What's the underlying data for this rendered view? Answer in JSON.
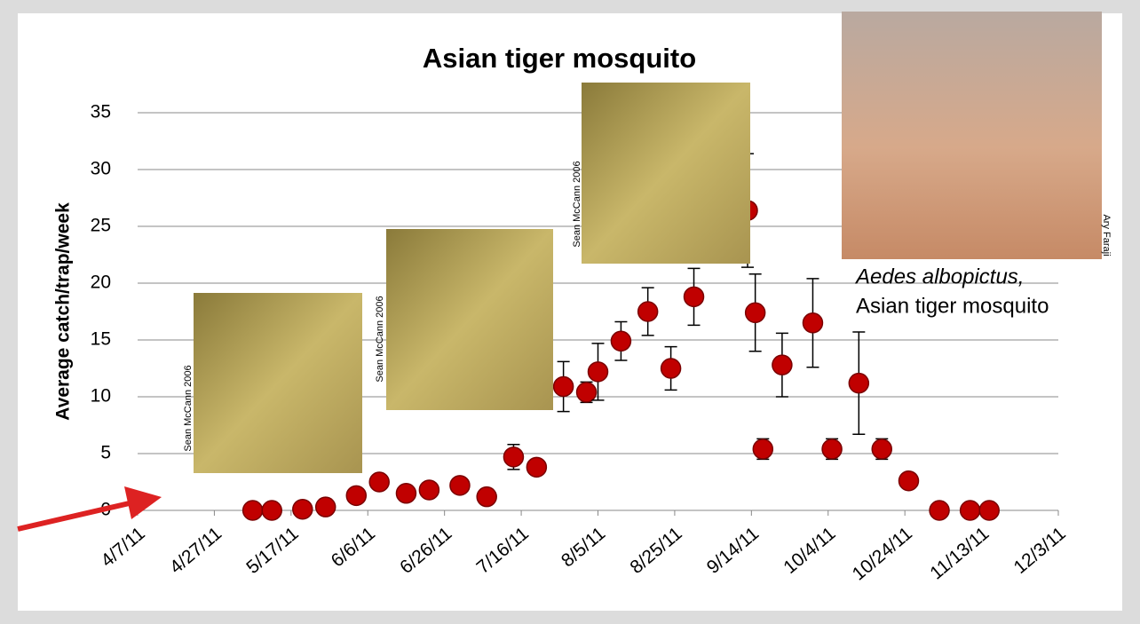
{
  "chart_data": {
    "type": "scatter",
    "title": "Asian tiger mosquito",
    "y_label": "Average catch/trap/week",
    "x": [
      "5/7/11",
      "5/12/11",
      "5/20/11",
      "5/26/11",
      "6/3/11",
      "6/9/11",
      "6/16/11",
      "6/22/11",
      "6/30/11",
      "7/7/11",
      "7/14/11",
      "7/20/11",
      "7/27/11",
      "8/2/11",
      "8/5/11",
      "8/11/11",
      "8/18/11",
      "8/24/11",
      "8/30/11",
      "9/13/11",
      "9/15/11",
      "9/17/11",
      "9/22/11",
      "9/30/11",
      "10/5/11",
      "10/12/11",
      "10/18/11",
      "10/25/11",
      "11/2/11",
      "11/10/11",
      "11/15/11"
    ],
    "values": [
      0,
      0,
      0.1,
      0.3,
      1.3,
      2.5,
      1.5,
      1.8,
      2.2,
      1.2,
      4.7,
      3.8,
      10.9,
      10.4,
      12.2,
      14.9,
      17.5,
      12.5,
      18.8,
      26.4,
      17.4,
      5.4,
      12.8,
      16.5,
      5.4,
      11.2,
      5.4,
      2.6,
      0,
      0,
      0
    ],
    "errors": [
      null,
      null,
      null,
      null,
      null,
      null,
      null,
      null,
      null,
      null,
      1.1,
      null,
      2.2,
      0.9,
      2.5,
      1.7,
      2.1,
      1.9,
      2.5,
      5,
      3.4,
      0.9,
      2.8,
      3.9,
      0.9,
      4.5,
      0.9,
      null,
      null,
      null,
      null
    ],
    "color": "#c00000",
    "xlim": [
      "4/7/11",
      "12/3/11"
    ],
    "xticks": [
      "4/7/11",
      "4/27/11",
      "5/17/11",
      "6/6/11",
      "6/26/11",
      "7/16/11",
      "8/5/11",
      "8/25/11",
      "9/14/11",
      "10/4/11",
      "10/24/11",
      "11/13/11",
      "12/3/11"
    ],
    "ylim": [
      0,
      35
    ],
    "yticks": [
      0,
      5,
      10,
      15,
      20,
      25,
      30,
      35
    ],
    "grid": true
  },
  "photos": [
    {
      "credit": "Sean McCann 2006"
    },
    {
      "credit": "Sean McCann 2006"
    },
    {
      "credit": "Sean McCann 2006"
    },
    {
      "credit": "Ary Faraji"
    }
  ],
  "caption": {
    "species": "Aedes albopictus,",
    "common_name": "Asian tiger mosquito"
  }
}
